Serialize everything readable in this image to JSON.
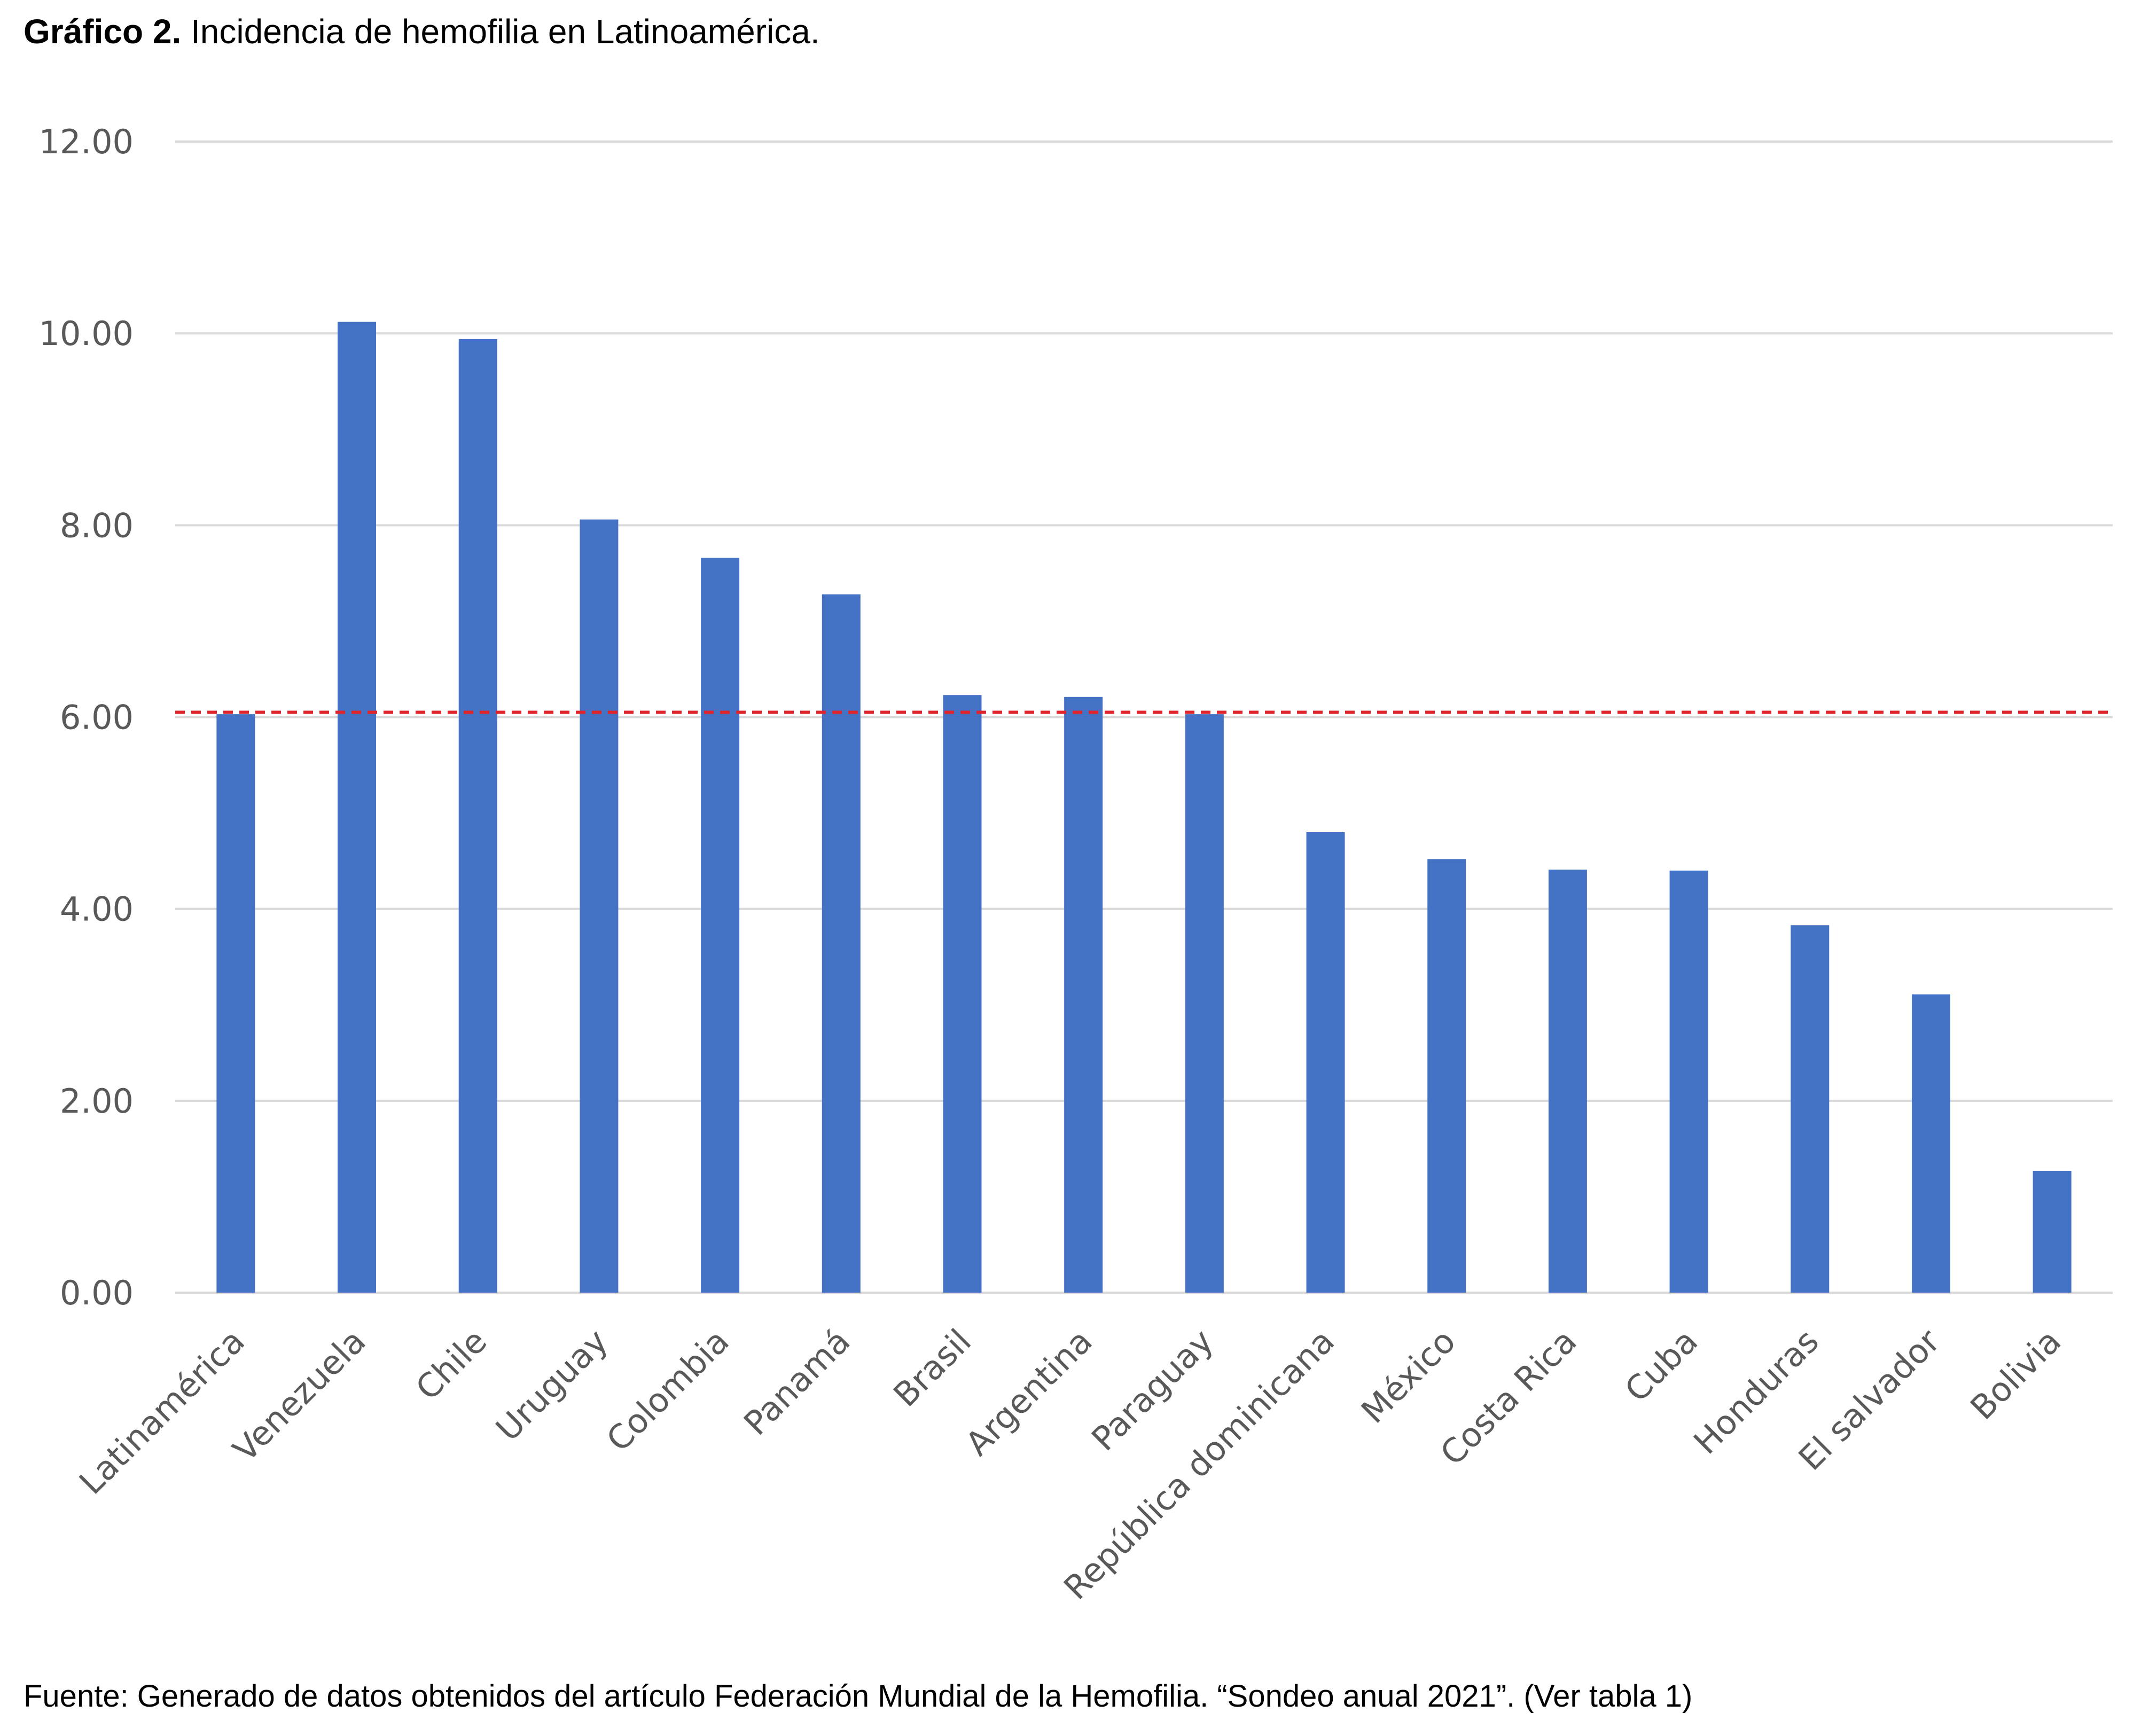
{
  "header": {
    "title_bold": "Gráfico 2.",
    "title_rest": " Incidencia de hemofilia en Latinoamérica."
  },
  "footer": {
    "source": "Fuente: Generado de datos obtenidos del artículo Federación Mundial de la Hemofilia. “Sondeo anual 2021”. (Ver tabla 1)"
  },
  "chart_data": {
    "type": "bar",
    "title": "",
    "xlabel": "",
    "ylabel": "",
    "ylim": [
      0,
      12
    ],
    "yticks": [
      0,
      2,
      4,
      6,
      8,
      10,
      12
    ],
    "ytick_labels": [
      "0.00",
      "2.00",
      "4.00",
      "6.00",
      "8.00",
      "10.00",
      "12.00"
    ],
    "grid": true,
    "categories": [
      "Latinamérica",
      "Venezuela",
      "Chile",
      "Uruguay",
      "Colombia",
      "Panamá",
      "Brasil",
      "Argentina",
      "Paraguay",
      "República dominicana",
      "México",
      "Costa Rica",
      "Cuba",
      "Honduras",
      "El salvador",
      "Bolivia"
    ],
    "values": [
      6.03,
      10.12,
      9.94,
      8.06,
      7.66,
      7.28,
      6.23,
      6.21,
      6.03,
      4.8,
      4.52,
      4.41,
      4.4,
      3.83,
      3.11,
      1.27
    ],
    "reference_line": {
      "value": 6.05,
      "style": "dashed"
    },
    "colors": {
      "bar": "#4472C4",
      "reference": "#E0242B",
      "grid": "#D9D9D9",
      "text": "#595959"
    }
  }
}
